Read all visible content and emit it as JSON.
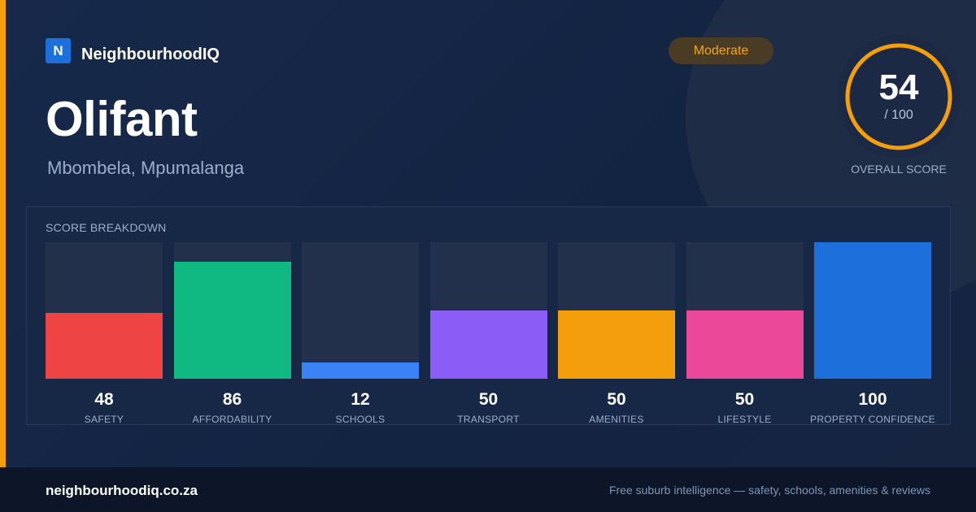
{
  "brand": {
    "logo_letter": "N",
    "name": "NeighbourhoodIQ",
    "logo_color": "#1d6fdc"
  },
  "suburb": {
    "name": "Olifant",
    "location": "Mbombela, Mpumalanga"
  },
  "rating": {
    "label": "Moderate",
    "color": "#f2a61c"
  },
  "overall": {
    "score": "54",
    "out_of": "/ 100",
    "label": "OVERALL SCORE",
    "fraction": 1.0,
    "ring_color": "#f59e0b"
  },
  "breakdown_title": "SCORE BREAKDOWN",
  "chart_data": {
    "type": "bar",
    "title": "SCORE BREAKDOWN",
    "categories": [
      "SAFETY",
      "AFFORDABILITY",
      "SCHOOLS",
      "TRANSPORT",
      "AMENITIES",
      "LIFESTYLE",
      "PROPERTY CONFIDENCE"
    ],
    "values": [
      48,
      86,
      12,
      50,
      50,
      50,
      100
    ],
    "colors": [
      "#ef4444",
      "#10b981",
      "#3b82f6",
      "#8b5cf6",
      "#f59e0b",
      "#ec4899",
      "#1d6fdc"
    ],
    "ylim": [
      0,
      100
    ],
    "grid": false
  },
  "footer": {
    "site": "neighbourhoodiq.co.za",
    "tagline": "Free suburb intelligence — safety, schools, amenities & reviews"
  }
}
